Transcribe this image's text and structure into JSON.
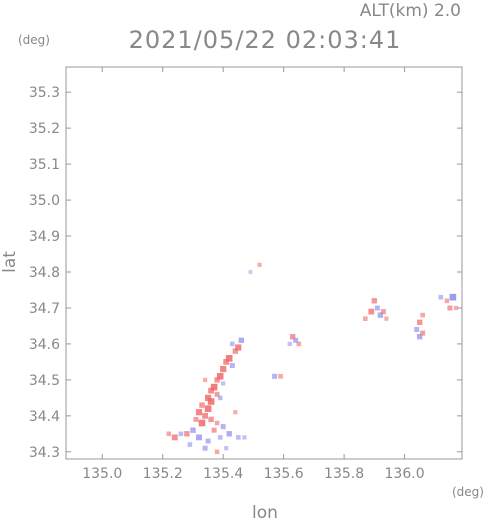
{
  "header": {
    "title": "2021/05/22 02:03:41",
    "altitude_label": "ALT(km) 2.0",
    "y_unit": "(deg)",
    "x_unit": "(deg)"
  },
  "chart_data": {
    "type": "scatter",
    "xlabel": "lon",
    "ylabel": "lat",
    "xlim": [
      134.88,
      136.19
    ],
    "ylim": [
      34.28,
      35.37
    ],
    "xticks": [
      "135.0",
      "135.2",
      "135.4",
      "135.6",
      "135.8",
      "136.0"
    ],
    "xtick_values": [
      135.0,
      135.2,
      135.4,
      135.6,
      135.8,
      136.0
    ],
    "yticks": [
      "34.3",
      "34.4",
      "34.5",
      "34.6",
      "34.7",
      "34.8",
      "34.9",
      "35.0",
      "35.1",
      "35.2",
      "35.3"
    ],
    "ytick_values": [
      34.3,
      34.4,
      34.5,
      34.6,
      34.7,
      34.8,
      34.9,
      35.0,
      35.1,
      35.2,
      35.3
    ],
    "grid": false,
    "colors": {
      "positive": "#ee6666",
      "negative": "#8888ee",
      "axis": "#999999",
      "text": "#888888"
    },
    "points": [
      {
        "x": 135.46,
        "y": 34.61,
        "v": -0.6
      },
      {
        "x": 135.45,
        "y": 34.59,
        "v": 0.8
      },
      {
        "x": 135.43,
        "y": 34.6,
        "v": -0.4
      },
      {
        "x": 135.44,
        "y": 34.58,
        "v": 0.6
      },
      {
        "x": 135.42,
        "y": 34.56,
        "v": 0.9
      },
      {
        "x": 135.41,
        "y": 34.55,
        "v": 0.7
      },
      {
        "x": 135.43,
        "y": 34.54,
        "v": -0.5
      },
      {
        "x": 135.4,
        "y": 34.53,
        "v": 0.8
      },
      {
        "x": 135.39,
        "y": 34.51,
        "v": 0.9
      },
      {
        "x": 135.38,
        "y": 34.5,
        "v": 0.6
      },
      {
        "x": 135.4,
        "y": 34.49,
        "v": -0.3
      },
      {
        "x": 135.37,
        "y": 34.48,
        "v": 0.9
      },
      {
        "x": 135.36,
        "y": 34.47,
        "v": 0.7
      },
      {
        "x": 135.38,
        "y": 34.46,
        "v": 0.5
      },
      {
        "x": 135.35,
        "y": 34.45,
        "v": 0.8
      },
      {
        "x": 135.36,
        "y": 34.44,
        "v": 0.9
      },
      {
        "x": 135.33,
        "y": 34.43,
        "v": 0.6
      },
      {
        "x": 135.35,
        "y": 34.42,
        "v": 0.9
      },
      {
        "x": 135.32,
        "y": 34.41,
        "v": 0.8
      },
      {
        "x": 135.34,
        "y": 34.4,
        "v": 0.7
      },
      {
        "x": 135.31,
        "y": 34.39,
        "v": 0.5
      },
      {
        "x": 135.33,
        "y": 34.38,
        "v": 0.9
      },
      {
        "x": 135.36,
        "y": 34.39,
        "v": 0.6
      },
      {
        "x": 135.38,
        "y": 34.38,
        "v": 0.4
      },
      {
        "x": 135.4,
        "y": 34.37,
        "v": -0.5
      },
      {
        "x": 135.37,
        "y": 34.36,
        "v": 0.5
      },
      {
        "x": 135.3,
        "y": 34.36,
        "v": -0.6
      },
      {
        "x": 135.28,
        "y": 34.35,
        "v": 0.6
      },
      {
        "x": 135.26,
        "y": 34.35,
        "v": -0.4
      },
      {
        "x": 135.24,
        "y": 34.34,
        "v": 0.7
      },
      {
        "x": 135.22,
        "y": 34.35,
        "v": 0.4
      },
      {
        "x": 135.32,
        "y": 34.34,
        "v": -0.7
      },
      {
        "x": 135.35,
        "y": 34.33,
        "v": -0.5
      },
      {
        "x": 135.39,
        "y": 34.34,
        "v": -0.4
      },
      {
        "x": 135.42,
        "y": 34.35,
        "v": -0.6
      },
      {
        "x": 135.45,
        "y": 34.34,
        "v": -0.4
      },
      {
        "x": 135.47,
        "y": 34.34,
        "v": -0.3
      },
      {
        "x": 135.34,
        "y": 34.31,
        "v": -0.5
      },
      {
        "x": 135.38,
        "y": 34.3,
        "v": 0.4
      },
      {
        "x": 135.29,
        "y": 34.32,
        "v": -0.4
      },
      {
        "x": 135.41,
        "y": 34.31,
        "v": -0.3
      },
      {
        "x": 135.44,
        "y": 34.41,
        "v": 0.3
      },
      {
        "x": 135.39,
        "y": 34.45,
        "v": -0.4
      },
      {
        "x": 135.34,
        "y": 34.5,
        "v": 0.3
      },
      {
        "x": 135.63,
        "y": 34.62,
        "v": 0.6
      },
      {
        "x": 135.64,
        "y": 34.61,
        "v": -0.5
      },
      {
        "x": 135.62,
        "y": 34.6,
        "v": -0.3
      },
      {
        "x": 135.65,
        "y": 34.6,
        "v": 0.4
      },
      {
        "x": 135.57,
        "y": 34.51,
        "v": -0.5
      },
      {
        "x": 135.59,
        "y": 34.51,
        "v": 0.4
      },
      {
        "x": 135.52,
        "y": 34.82,
        "v": 0.3
      },
      {
        "x": 135.49,
        "y": 34.8,
        "v": -0.2
      },
      {
        "x": 135.9,
        "y": 34.72,
        "v": 0.6
      },
      {
        "x": 135.91,
        "y": 34.7,
        "v": -0.5
      },
      {
        "x": 135.89,
        "y": 34.69,
        "v": 0.7
      },
      {
        "x": 135.92,
        "y": 34.68,
        "v": -0.6
      },
      {
        "x": 135.93,
        "y": 34.69,
        "v": 0.5
      },
      {
        "x": 135.87,
        "y": 34.67,
        "v": 0.4
      },
      {
        "x": 135.94,
        "y": 34.67,
        "v": 0.3
      },
      {
        "x": 136.06,
        "y": 34.68,
        "v": 0.4
      },
      {
        "x": 136.05,
        "y": 34.66,
        "v": 0.6
      },
      {
        "x": 136.04,
        "y": 34.64,
        "v": -0.5
      },
      {
        "x": 136.06,
        "y": 34.63,
        "v": 0.5
      },
      {
        "x": 136.05,
        "y": 34.62,
        "v": -0.6
      },
      {
        "x": 136.12,
        "y": 34.73,
        "v": -0.4
      },
      {
        "x": 136.14,
        "y": 34.72,
        "v": 0.4
      },
      {
        "x": 136.16,
        "y": 34.73,
        "v": -0.9
      },
      {
        "x": 136.15,
        "y": 34.7,
        "v": 0.5
      },
      {
        "x": 136.17,
        "y": 34.7,
        "v": 0.3
      }
    ]
  }
}
